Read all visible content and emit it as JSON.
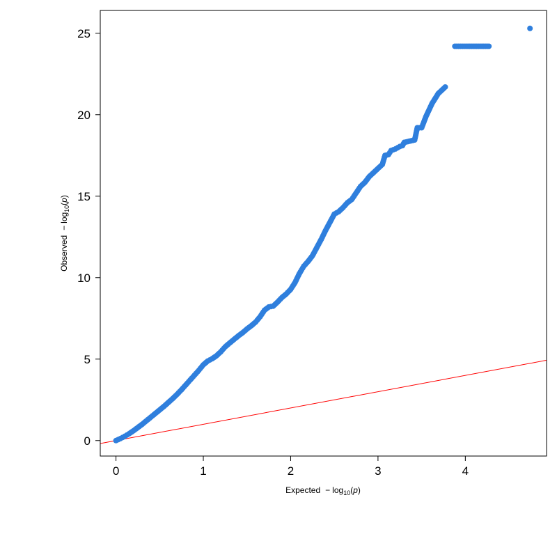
{
  "chart_data": {
    "type": "scatter",
    "title": "",
    "xlabel": {
      "prefix": "Expected",
      "minus": "−",
      "log": "log",
      "base": "10",
      "open": "(",
      "var": "p",
      "close": ")"
    },
    "ylabel": {
      "prefix": "Observed",
      "minus": "−",
      "log": "log",
      "base": "10",
      "open": "(",
      "var": "p",
      "close": ")"
    },
    "xlim": [
      -0.18,
      4.93
    ],
    "ylim": [
      -0.95,
      26.4
    ],
    "xticks": [
      "0",
      "1",
      "2",
      "3",
      "4"
    ],
    "yticks": [
      "0",
      "5",
      "10",
      "15",
      "20",
      "25"
    ],
    "grid": false,
    "colors": {
      "points": "#2f7fdd",
      "reference_line": "#ff0000",
      "frame": "#000000"
    },
    "reference_line": {
      "slope": 1,
      "intercept": 0
    },
    "series": [
      {
        "points": [
          [
            0.0,
            0.0
          ],
          [
            0.05,
            0.12
          ],
          [
            0.1,
            0.26
          ],
          [
            0.15,
            0.42
          ],
          [
            0.2,
            0.6
          ],
          [
            0.25,
            0.8
          ],
          [
            0.3,
            1.0
          ],
          [
            0.35,
            1.22
          ],
          [
            0.4,
            1.44
          ],
          [
            0.45,
            1.66
          ],
          [
            0.5,
            1.88
          ],
          [
            0.55,
            2.1
          ],
          [
            0.6,
            2.34
          ],
          [
            0.65,
            2.58
          ],
          [
            0.7,
            2.84
          ],
          [
            0.75,
            3.12
          ],
          [
            0.8,
            3.42
          ],
          [
            0.85,
            3.72
          ],
          [
            0.9,
            4.02
          ],
          [
            0.95,
            4.32
          ],
          [
            1.0,
            4.65
          ],
          [
            1.05,
            4.88
          ],
          [
            1.1,
            5.02
          ],
          [
            1.15,
            5.2
          ],
          [
            1.2,
            5.45
          ],
          [
            1.25,
            5.75
          ],
          [
            1.3,
            5.98
          ],
          [
            1.35,
            6.2
          ],
          [
            1.4,
            6.42
          ],
          [
            1.45,
            6.62
          ],
          [
            1.5,
            6.85
          ],
          [
            1.55,
            7.05
          ],
          [
            1.6,
            7.28
          ],
          [
            1.65,
            7.6
          ],
          [
            1.7,
            8.0
          ],
          [
            1.75,
            8.2
          ],
          [
            1.8,
            8.25
          ],
          [
            1.85,
            8.5
          ],
          [
            1.9,
            8.78
          ],
          [
            1.95,
            9.0
          ],
          [
            2.0,
            9.28
          ],
          [
            2.05,
            9.7
          ],
          [
            2.1,
            10.25
          ],
          [
            2.15,
            10.7
          ],
          [
            2.2,
            11.0
          ],
          [
            2.25,
            11.35
          ],
          [
            2.3,
            11.85
          ],
          [
            2.35,
            12.35
          ],
          [
            2.4,
            12.9
          ],
          [
            2.45,
            13.4
          ],
          [
            2.5,
            13.9
          ],
          [
            2.55,
            14.05
          ],
          [
            2.6,
            14.3
          ],
          [
            2.65,
            14.6
          ],
          [
            2.7,
            14.8
          ],
          [
            2.75,
            15.2
          ],
          [
            2.8,
            15.6
          ],
          [
            2.85,
            15.85
          ],
          [
            2.9,
            16.2
          ],
          [
            2.95,
            16.45
          ],
          [
            3.0,
            16.7
          ],
          [
            3.05,
            16.95
          ],
          [
            3.08,
            17.5
          ],
          [
            3.12,
            17.55
          ],
          [
            3.15,
            17.8
          ],
          [
            3.2,
            17.9
          ],
          [
            3.25,
            18.05
          ],
          [
            3.28,
            18.1
          ],
          [
            3.3,
            18.3
          ],
          [
            3.34,
            18.35
          ],
          [
            3.38,
            18.4
          ],
          [
            3.42,
            18.45
          ],
          [
            3.45,
            19.2
          ],
          [
            3.5,
            19.2
          ],
          [
            3.55,
            19.9
          ],
          [
            3.62,
            20.7
          ],
          [
            3.69,
            21.3
          ],
          [
            3.77,
            21.7
          ],
          [
            3.88,
            24.2
          ],
          [
            4.03,
            24.2
          ],
          [
            4.27,
            24.2
          ],
          [
            4.74,
            25.3
          ]
        ]
      }
    ]
  }
}
